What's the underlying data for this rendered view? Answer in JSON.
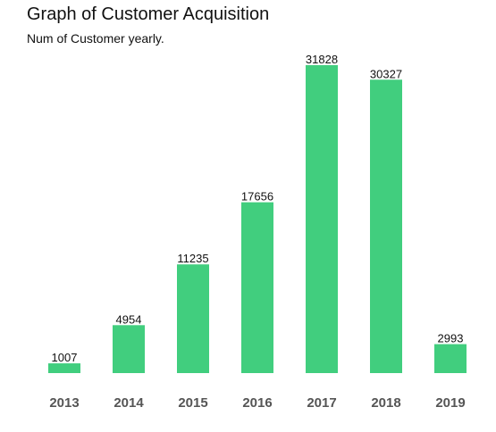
{
  "chart_data": {
    "type": "bar",
    "title": "Graph of Customer Acquisition",
    "subtitle": "Num of Customer yearly.",
    "categories": [
      "2013",
      "2014",
      "2015",
      "2016",
      "2017",
      "2018",
      "2019"
    ],
    "values": [
      1007,
      4954,
      11235,
      17656,
      31828,
      30327,
      2993
    ],
    "data_labels": [
      "1007",
      "4954",
      "11235",
      "17656",
      "31828",
      "30327",
      "2993"
    ],
    "xlabel": "",
    "ylabel": "",
    "ylim": [
      0,
      31828
    ],
    "grid": false,
    "legend": "none",
    "colors": {
      "bar": "#41ce7e",
      "label": "#111111",
      "tick": "#555555"
    }
  }
}
